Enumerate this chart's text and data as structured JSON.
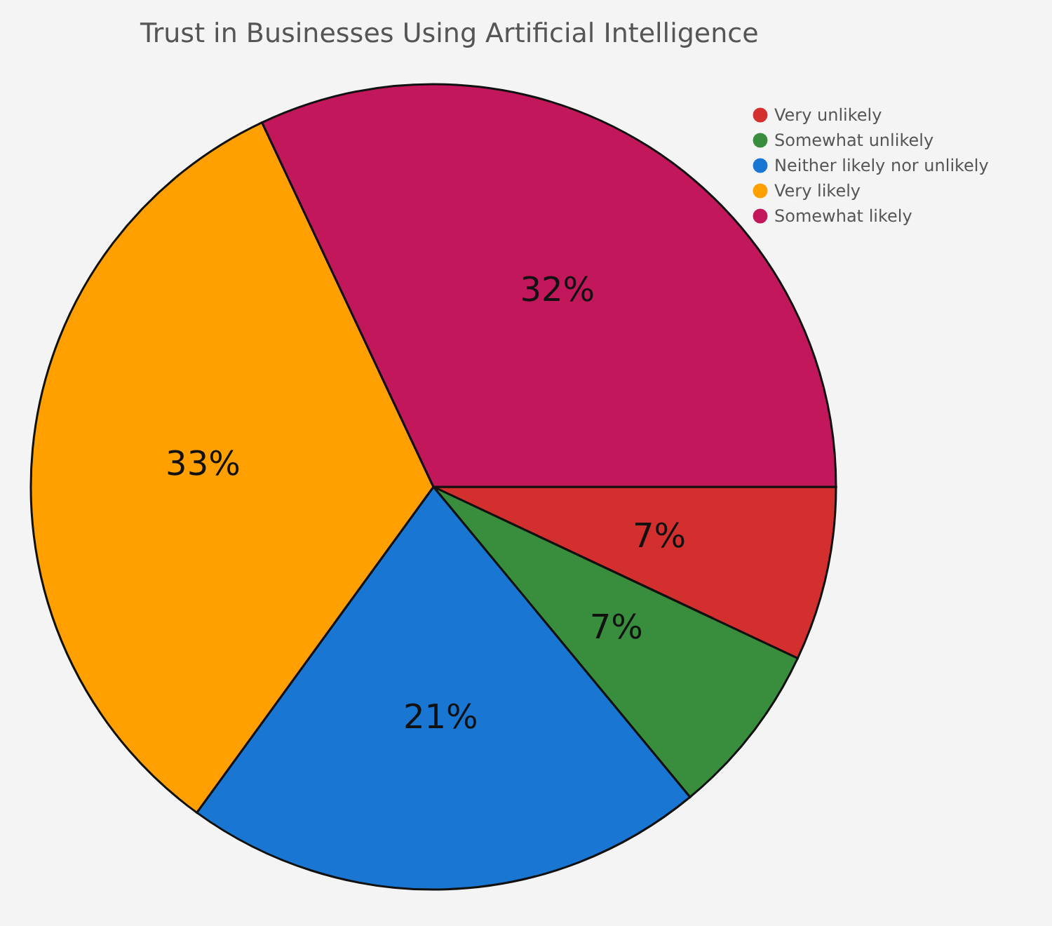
{
  "chart_data": {
    "type": "pie",
    "title": "Trust in Businesses Using Artificial Intelligence",
    "categories": [
      "Very unlikely",
      "Somewhat unlikely",
      "Neither likely nor unlikely",
      "Very likely",
      "Somewhat likely"
    ],
    "values": [
      7,
      7,
      21,
      33,
      32
    ],
    "colors": [
      "#d32f2f",
      "#388e3c",
      "#1976d2",
      "#ffa000",
      "#c2185b"
    ],
    "value_labels": [
      "7%",
      "7%",
      "21%",
      "33%",
      "32%"
    ],
    "legend": "top right"
  }
}
